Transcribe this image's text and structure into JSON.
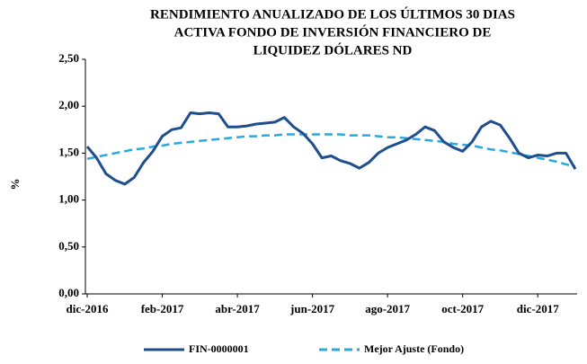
{
  "chart_data": {
    "type": "line",
    "title": [
      "RENDIMIENTO ANUALIZADO DE LOS ÚLTIMOS 30 DIAS",
      "ACTIVA FONDO DE INVERSIÓN FINANCIERO DE",
      "LIQUIDEZ DÓLARES ND"
    ],
    "ylabel": "%",
    "categories": [
      "dic-2016",
      null,
      null,
      null,
      null,
      null,
      null,
      null,
      "feb-2017",
      null,
      null,
      null,
      null,
      null,
      null,
      null,
      "abr-2017",
      null,
      null,
      null,
      null,
      null,
      null,
      null,
      "jun-2017",
      null,
      null,
      null,
      null,
      null,
      null,
      null,
      "ago-2017",
      null,
      null,
      null,
      null,
      null,
      null,
      null,
      "oct-2017",
      null,
      null,
      null,
      null,
      null,
      null,
      null,
      "dic-2017",
      null,
      null,
      null,
      null
    ],
    "series": [
      {
        "name": "FIN-0000001",
        "color": "#1f4e8c",
        "dashed": false,
        "values": [
          1.57,
          1.45,
          1.28,
          1.21,
          1.17,
          1.24,
          1.4,
          1.52,
          1.68,
          1.75,
          1.77,
          1.93,
          1.92,
          1.93,
          1.92,
          1.78,
          1.78,
          1.79,
          1.81,
          1.82,
          1.83,
          1.88,
          1.78,
          1.71,
          1.6,
          1.45,
          1.47,
          1.42,
          1.39,
          1.34,
          1.4,
          1.5,
          1.56,
          1.6,
          1.64,
          1.7,
          1.78,
          1.74,
          1.62,
          1.56,
          1.52,
          1.62,
          1.78,
          1.84,
          1.8,
          1.66,
          1.5,
          1.45,
          1.48,
          1.47,
          1.5,
          1.5,
          1.33
        ]
      },
      {
        "name": "Mejor Ajuste (Fondo)",
        "color": "#29a9e0",
        "dashed": true,
        "values": [
          1.44,
          1.46,
          1.48,
          1.5,
          1.52,
          1.54,
          1.55,
          1.57,
          1.58,
          1.6,
          1.61,
          1.62,
          1.63,
          1.64,
          1.65,
          1.66,
          1.67,
          1.68,
          1.68,
          1.69,
          1.69,
          1.7,
          1.7,
          1.7,
          1.7,
          1.7,
          1.7,
          1.7,
          1.69,
          1.69,
          1.69,
          1.68,
          1.67,
          1.67,
          1.66,
          1.65,
          1.64,
          1.63,
          1.62,
          1.6,
          1.59,
          1.58,
          1.56,
          1.54,
          1.53,
          1.51,
          1.49,
          1.47,
          1.45,
          1.43,
          1.41,
          1.38,
          1.36
        ]
      }
    ],
    "ylim": [
      0,
      2.5
    ],
    "yticks": [
      {
        "value": 0,
        "label": "0,00"
      },
      {
        "value": 0.5,
        "label": "0,50"
      },
      {
        "value": 1,
        "label": "1,00"
      },
      {
        "value": 1.5,
        "label": "1,50"
      },
      {
        "value": 2,
        "label": "2,00"
      },
      {
        "value": 2.5,
        "label": "2,50"
      }
    ],
    "grid": false,
    "legend": "bottom"
  }
}
